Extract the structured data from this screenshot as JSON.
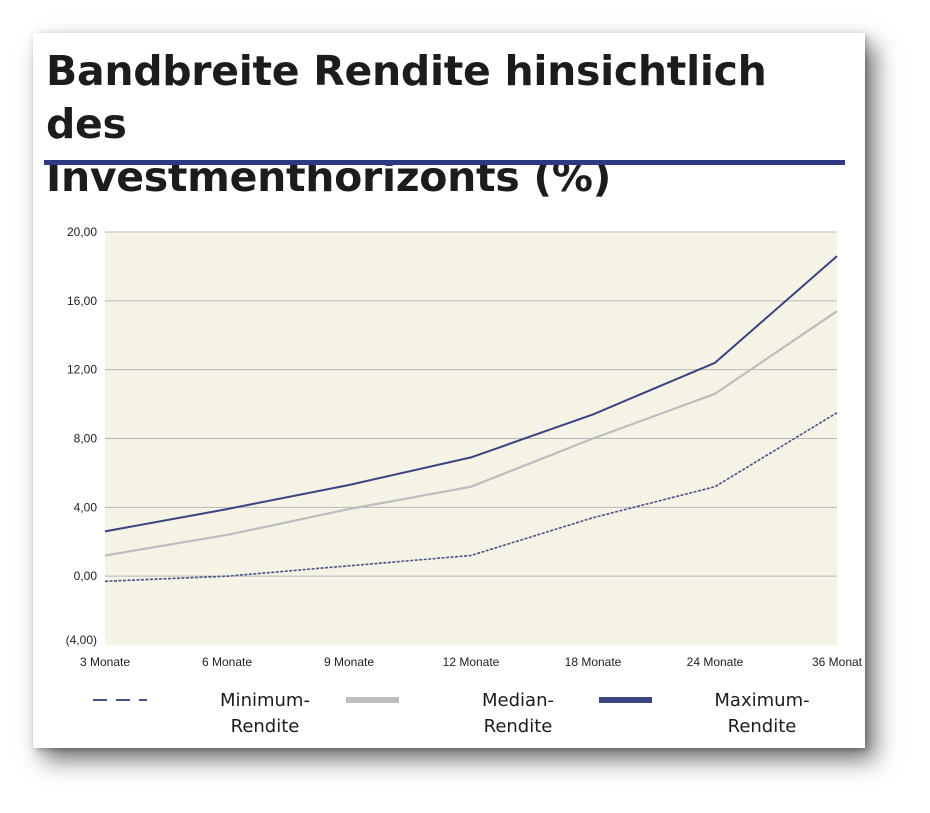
{
  "title_line1": "Bandbreite Rendite hinsichtlich des",
  "title_line2": "Investmenthorizonts (%)",
  "colors": {
    "title_rule": "#2f3883",
    "plot_bg": "#f5f2e6",
    "grid": "#b9b9b9",
    "minimum": "#4a5288",
    "median": "#bdbdbd",
    "maximum": "#3b4482"
  },
  "chart_data": {
    "type": "line",
    "categories": [
      "3 Monate",
      "6 Monate",
      "9 Monate",
      "12 Monate",
      "18 Monate",
      "24 Monate",
      "36 Monat"
    ],
    "y_ticks": [
      "20,00",
      "16,00",
      "12,00",
      "8,00",
      "4,00",
      "0,00",
      "(4,00)"
    ],
    "ylim": [
      -4,
      20
    ],
    "grid": true,
    "legend_position": "bottom",
    "series": [
      {
        "name_line1": "Minimum-",
        "name_line2": "Rendite",
        "style": "dashed",
        "values": [
          -0.3,
          0.0,
          0.6,
          1.2,
          3.4,
          5.2,
          9.5
        ]
      },
      {
        "name_line1": "Median-",
        "name_line2": "Rendite",
        "style": "solid-light",
        "values": [
          1.2,
          2.4,
          3.9,
          5.2,
          8.0,
          10.6,
          15.4
        ]
      },
      {
        "name_line1": "Maximum-",
        "name_line2": "Rendite",
        "style": "solid-dark",
        "values": [
          2.6,
          3.9,
          5.3,
          6.9,
          9.4,
          12.4,
          18.6
        ]
      }
    ]
  }
}
